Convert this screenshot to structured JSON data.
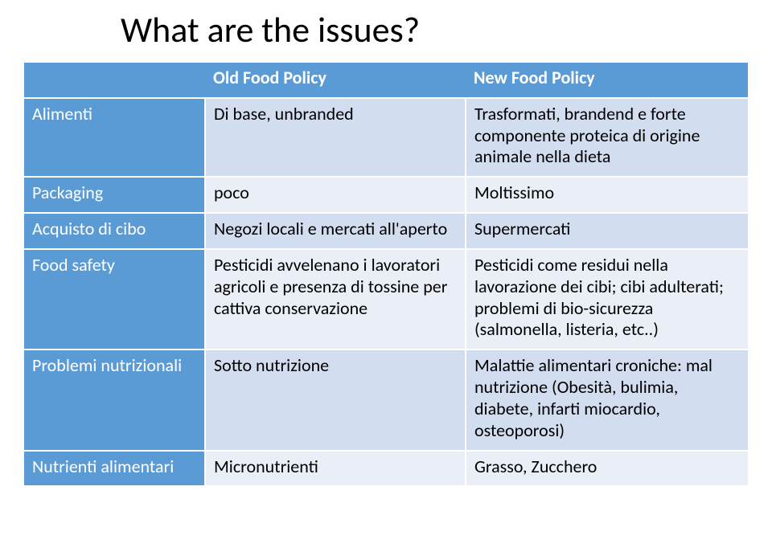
{
  "title": "What are the issues?",
  "colors": {
    "header_bg": "#5b9bd5",
    "header_text": "#ffffff",
    "band1": "#d2deef",
    "band2": "#eaeff7",
    "border": "#ffffff",
    "text": "#000000"
  },
  "typography": {
    "title_fontsize": 44,
    "cell_fontsize": 22,
    "font_family": "Calibri, Arial, sans-serif"
  },
  "table": {
    "column_widths_pct": [
      25,
      36,
      39
    ],
    "headers": [
      "",
      "Old Food Policy",
      "New Food Policy"
    ],
    "rows": [
      {
        "label": "Alimenti",
        "old": "Di base, unbranded",
        "new": "Trasformati, brandend e forte componente proteica di origine animale nella dieta"
      },
      {
        "label": "Packaging",
        "old": "poco",
        "new": "Moltissimo"
      },
      {
        "label": "Acquisto di cibo",
        "old": "Negozi locali e mercati all'aperto",
        "new": "Supermercati"
      },
      {
        "label": "Food safety",
        "old": "Pesticidi avvelenano i lavoratori agricoli e presenza di tossine per cattiva conservazione",
        "new": "Pesticidi come residui nella lavorazione dei cibi; cibi adulterati; problemi di bio-sicurezza (salmonella, listeria, etc..)"
      },
      {
        "label": "Problemi nutrizionali",
        "old": "Sotto nutrizione",
        "new": "Malattie alimentari croniche: mal nutrizione (Obesità, bulimia, diabete, infarti miocardio, osteoporosi)"
      },
      {
        "label": "Nutrienti alimentari",
        "old": "Micronutrienti",
        "new": "Grasso, Zucchero"
      }
    ]
  }
}
